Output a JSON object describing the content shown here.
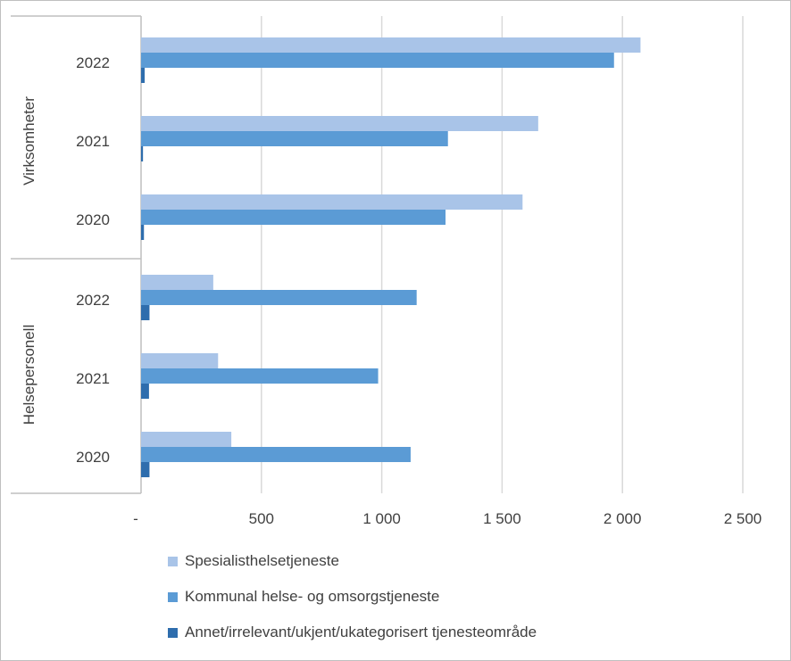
{
  "chart_data": {
    "type": "bar",
    "orientation": "horizontal",
    "groups": [
      {
        "name": "Virksomheter",
        "categories": [
          "2022",
          "2021",
          "2020"
        ]
      },
      {
        "name": "Helsepersonell",
        "categories": [
          "2022",
          "2021",
          "2020"
        ]
      }
    ],
    "series": [
      {
        "name": "Spesialisthelsetjeneste",
        "color": "#a9c4e8",
        "values": [
          2075,
          1650,
          1585,
          300,
          320,
          375
        ]
      },
      {
        "name": "Kommunal helse- og omsorgstjeneste",
        "color": "#5b9bd5",
        "values": [
          1965,
          1275,
          1265,
          1145,
          985,
          1120
        ]
      },
      {
        "name": "Annet/irrelevant/ukjent/ukategorisert tjenesteområde",
        "color": "#2e6dad",
        "values": [
          15,
          8,
          12,
          35,
          33,
          35
        ]
      }
    ],
    "xlim": [
      0,
      2500
    ],
    "xticks": [
      0,
      500,
      1000,
      1500,
      2000,
      2500
    ],
    "xtick_labels": [
      "-",
      "500",
      "1 000",
      "1 500",
      "2 000",
      "2 500"
    ],
    "grid": "vertical",
    "legend_position": "bottom"
  }
}
